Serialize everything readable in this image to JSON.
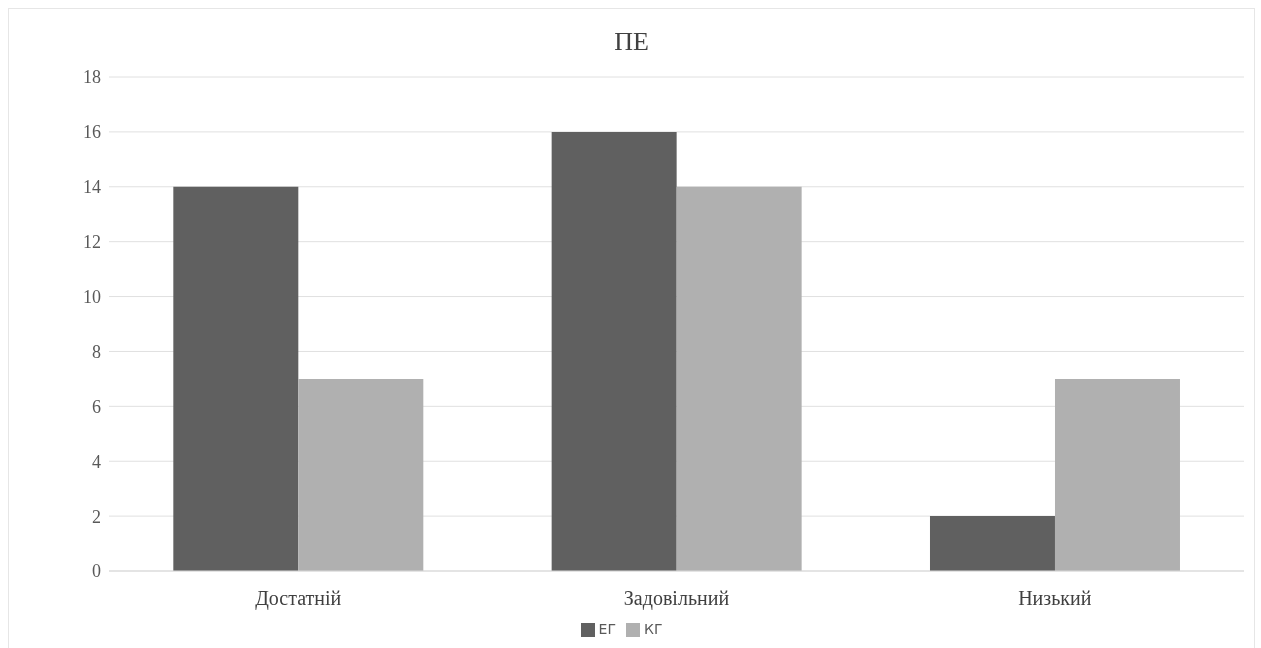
{
  "chart_data": {
    "type": "bar",
    "title": "ПЕ",
    "categories": [
      "Достатній",
      "Задовільний",
      "Низький"
    ],
    "series": [
      {
        "name": "ЕГ",
        "color": "#606060",
        "values": [
          14,
          16,
          2
        ]
      },
      {
        "name": "КГ",
        "color": "#b0b0b0",
        "values": [
          7,
          14,
          7
        ]
      }
    ],
    "ylim": [
      0,
      18
    ],
    "yticks": [
      0,
      2,
      4,
      6,
      8,
      10,
      12,
      14,
      16,
      18
    ],
    "grid": "y",
    "legend": "bottom"
  }
}
